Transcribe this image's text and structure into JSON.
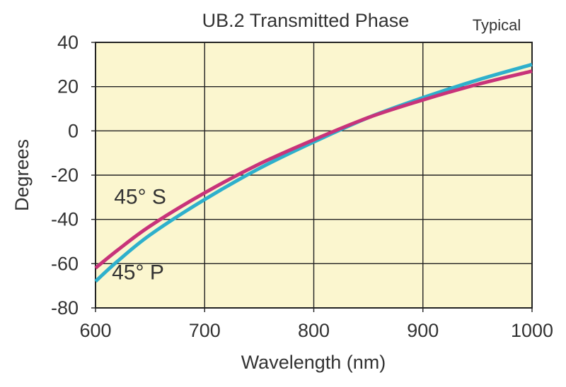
{
  "chart_data": {
    "type": "line",
    "title": "UB.2 Transmitted Phase",
    "subtitle": "Typical",
    "xlabel": "Wavelength (nm)",
    "ylabel": "Degrees",
    "xlim": [
      600,
      1000
    ],
    "ylim": [
      -80,
      40
    ],
    "grid": true,
    "xticks": [
      600,
      700,
      800,
      900,
      1000
    ],
    "yticks": [
      40,
      20,
      0,
      -20,
      -40,
      -60,
      -80
    ],
    "xtick_labels": [
      "600",
      "700",
      "800",
      "900",
      "1000"
    ],
    "ytick_labels": [
      "40",
      "20",
      "0",
      "-20",
      "-40",
      "-60",
      "-80"
    ],
    "colors": {
      "background": "#fbf6cf",
      "grid": "#222222",
      "s_color": "#c8337a",
      "p_color": "#2eb0cc",
      "overlap": "#3a3a7a"
    },
    "series": [
      {
        "name": "45° P",
        "label_pos": [
          615,
          -67
        ],
        "x": [
          600,
          620,
          650,
          700,
          750,
          800,
          850,
          900,
          950,
          1000
        ],
        "values": [
          -68,
          -59,
          -47,
          -31,
          -17,
          -5,
          6,
          15,
          23,
          30
        ]
      },
      {
        "name": "45° S",
        "label_pos": [
          617,
          -33
        ],
        "x": [
          600,
          620,
          650,
          700,
          750,
          800,
          850,
          900,
          950,
          1000
        ],
        "values": [
          -62,
          -54,
          -43,
          -28,
          -15,
          -4,
          6,
          14,
          21,
          27
        ]
      }
    ]
  }
}
